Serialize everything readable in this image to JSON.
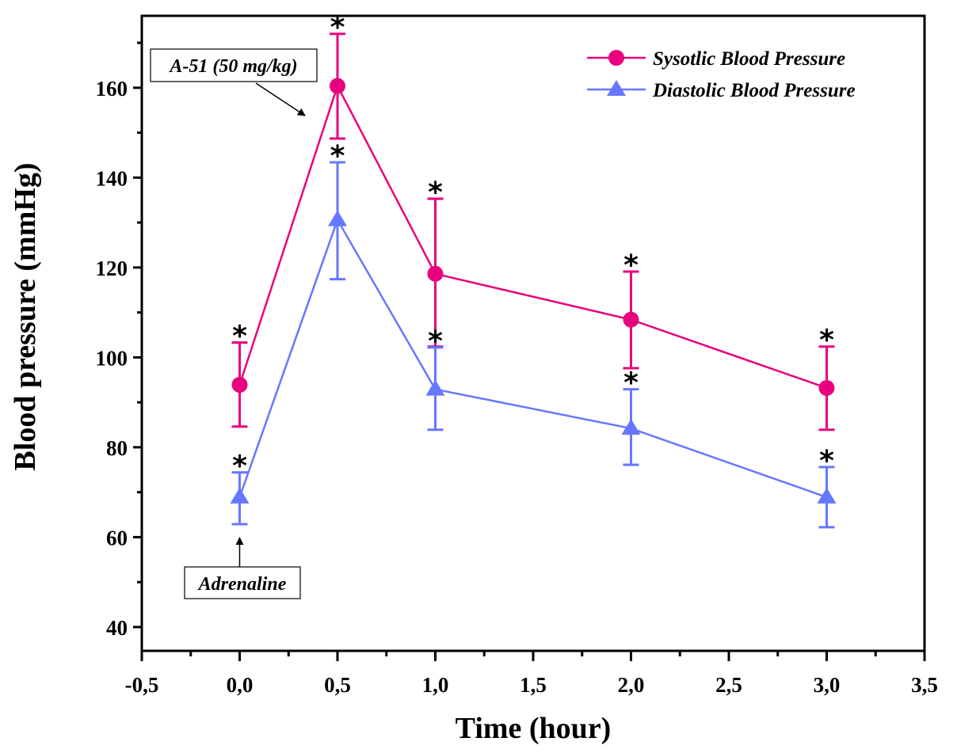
{
  "chart_data": {
    "type": "line",
    "title": "",
    "xlabel": "Time (hour)",
    "ylabel": "Blood pressure (mmHg)",
    "xlim": [
      -0.5,
      3.5
    ],
    "ylim": [
      34.7,
      176
    ],
    "x_ticks": [
      -0.5,
      0.0,
      0.5,
      1.0,
      1.5,
      2.0,
      2.5,
      3.0,
      3.5
    ],
    "x_tick_labels": [
      "-0,5",
      "0,0",
      "0,5",
      "1,0",
      "1,5",
      "2,0",
      "2,5",
      "3,0",
      "3,5"
    ],
    "y_ticks": [
      40,
      60,
      80,
      100,
      120,
      140,
      160
    ],
    "y_tick_labels": [
      "40",
      "60",
      "80",
      "100",
      "120",
      "140",
      "160"
    ],
    "grid": false,
    "legend_position": "top-right",
    "x": [
      0.0,
      0.5,
      1.0,
      2.0,
      3.0
    ],
    "series": [
      {
        "name": "Sysotlic Blood Pressure",
        "marker": "circle",
        "color": "#e8007e",
        "values": [
          93.9,
          160.4,
          118.6,
          108.4,
          93.2
        ],
        "error_upper": [
          103.3,
          172.0,
          135.3,
          119.1,
          102.4
        ],
        "error_lower": [
          84.6,
          148.7,
          102.4,
          97.6,
          83.9
        ],
        "significance": [
          "*",
          "*",
          "*",
          "*",
          "*"
        ]
      },
      {
        "name": "Diastolic Blood Pressure",
        "marker": "triangle",
        "color": "#6677ff",
        "values": [
          68.9,
          130.6,
          92.9,
          84.2,
          68.9
        ],
        "error_upper": [
          74.4,
          143.4,
          102.2,
          92.9,
          75.6
        ],
        "error_lower": [
          62.9,
          117.4,
          83.9,
          76.1,
          62.2
        ],
        "significance": [
          "*",
          "*",
          "*",
          "*",
          "*"
        ]
      }
    ],
    "annotations": [
      {
        "text": "A-51 (50 mg/kg)",
        "points_to_x": 0.5,
        "points_to_y": 160.4
      },
      {
        "text": "Adrenaline",
        "points_to_x": 0.0,
        "points_to_y": 62.9
      }
    ]
  }
}
